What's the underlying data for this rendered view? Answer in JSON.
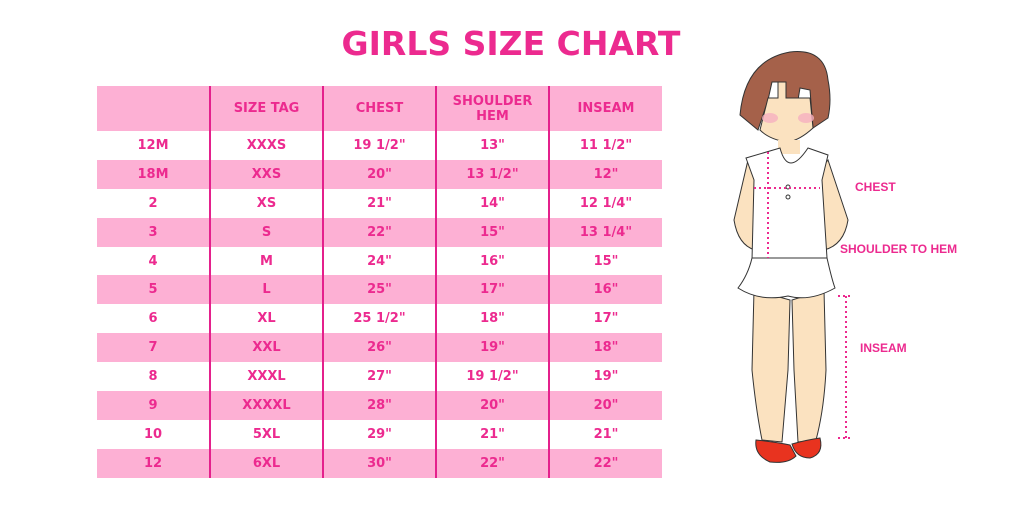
{
  "title": "GIRLS SIZE CHART",
  "table": {
    "headers": [
      "",
      "SIZE TAG",
      "CHEST",
      "SHOULDER HEM",
      "INSEAM"
    ],
    "rows": [
      [
        "12M",
        "XXXS",
        "19 1/2\"",
        "13\"",
        "11 1/2\""
      ],
      [
        "18M",
        "XXS",
        "20\"",
        "13 1/2\"",
        "12\""
      ],
      [
        "2",
        "XS",
        "21\"",
        "14\"",
        "12 1/4\""
      ],
      [
        "3",
        "S",
        "22\"",
        "15\"",
        "13 1/4\""
      ],
      [
        "4",
        "M",
        "24\"",
        "16\"",
        "15\""
      ],
      [
        "5",
        "L",
        "25\"",
        "17\"",
        "16\""
      ],
      [
        "6",
        "XL",
        "25 1/2\"",
        "18\"",
        "17\""
      ],
      [
        "7",
        "XXL",
        "26\"",
        "19\"",
        "18\""
      ],
      [
        "8",
        "XXXL",
        "27\"",
        "19 1/2\"",
        "19\""
      ],
      [
        "9",
        "XXXXL",
        "28\"",
        "20\"",
        "20\""
      ],
      [
        "10",
        "5XL",
        "29\"",
        "21\"",
        "21\""
      ],
      [
        "12",
        "6XL",
        "30\"",
        "22\"",
        "22\""
      ]
    ]
  },
  "figure": {
    "labels": {
      "chest": "CHEST",
      "shoulder_to_hem": "SHOULDER TO HEM",
      "inseam": "INSEAM"
    }
  },
  "colors": {
    "accent": "#ec2a8f",
    "row_pink": "#fdb0d4",
    "divider": "#e4208c"
  }
}
